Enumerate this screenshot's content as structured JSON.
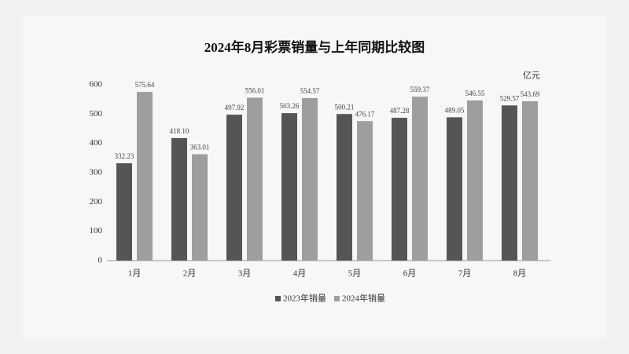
{
  "chart_data": {
    "type": "bar",
    "title": "2024年8月彩票销量与上年同期比较图",
    "y_unit": "亿元",
    "categories": [
      "1月",
      "2月",
      "3月",
      "4月",
      "5月",
      "6月",
      "7月",
      "8月"
    ],
    "series": [
      {
        "name": "2023年销量",
        "color": "#555555",
        "values": [
          332.23,
          418.1,
          497.92,
          503.26,
          500.21,
          487.28,
          489.05,
          529.57
        ],
        "value_labels": [
          "332.23",
          "418.10",
          "497.92",
          "503.26",
          "500.21",
          "487.28",
          "489.05",
          "529.57"
        ]
      },
      {
        "name": "2024年销量",
        "color": "#9e9e9e",
        "values": [
          575.64,
          363.01,
          556.01,
          554.57,
          476.17,
          559.37,
          546.55,
          543.69
        ],
        "value_labels": [
          "575.64",
          "363.01",
          "556.01",
          "554.57",
          "476.17",
          "559.37",
          "546.55",
          "543.69"
        ]
      }
    ],
    "ylim": [
      0,
      600
    ],
    "yticks": [
      0,
      100,
      200,
      300,
      400,
      500,
      600
    ],
    "grid": false,
    "legend": "bottom"
  }
}
